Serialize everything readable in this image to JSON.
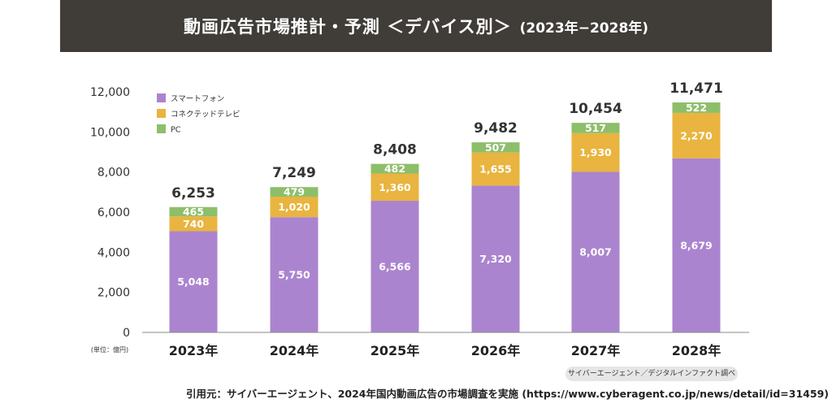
{
  "header": {
    "title": "動画広告市場推計・予測 ＜デバイス別＞",
    "subtitle": "(2023年−2028年)"
  },
  "chart_data": {
    "type": "bar",
    "stacked": true,
    "categories": [
      "2023年",
      "2024年",
      "2025年",
      "2026年",
      "2027年",
      "2028年"
    ],
    "series": [
      {
        "name": "スマートフォン",
        "color": "#ab84cf",
        "values": [
          5048,
          5750,
          6566,
          7320,
          8007,
          8679
        ],
        "labels": [
          "5,048",
          "5,750",
          "6,566",
          "7,320",
          "8,007",
          "8,679"
        ]
      },
      {
        "name": "コネクテッドテレビ",
        "color": "#e9b43f",
        "values": [
          740,
          1020,
          1360,
          1655,
          1930,
          2270
        ],
        "labels": [
          "740",
          "1,020",
          "1,360",
          "1,655",
          "1,930",
          "2,270"
        ]
      },
      {
        "name": "PC",
        "color": "#8dbf6a",
        "values": [
          465,
          479,
          482,
          507,
          517,
          522
        ],
        "labels": [
          "465",
          "479",
          "482",
          "507",
          "517",
          "522"
        ]
      }
    ],
    "totals": [
      6253,
      7249,
      8408,
      9482,
      10454,
      11471
    ],
    "total_labels": [
      "6,253",
      "7,249",
      "8,408",
      "9,482",
      "10,454",
      "11,471"
    ],
    "ylim": [
      0,
      12000
    ],
    "yticks": [
      0,
      2000,
      4000,
      6000,
      8000,
      10000,
      12000
    ],
    "ytick_labels": [
      "0",
      "2,000",
      "4,000",
      "6,000",
      "8,000",
      "10,000",
      "12,000"
    ],
    "unit_label": "(単位：億円)",
    "legend_position": "top-left",
    "grid": false
  },
  "source_badge": "サイバーエージェント／デジタルインファクト調べ",
  "citation": "引用元：サイバーエージェント、2024年国内動画広告の市場調査を実施 (https://www.cyberagent.co.jp/news/detail/id=31459)"
}
